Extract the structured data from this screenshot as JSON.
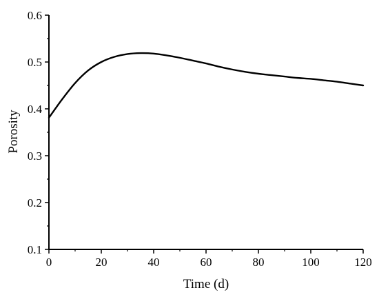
{
  "chart_data": {
    "type": "line",
    "title": "",
    "xlabel": "Time (d)",
    "ylabel": "Porosity",
    "xlim": [
      0,
      120
    ],
    "ylim": [
      0.1,
      0.6
    ],
    "x_ticks": [
      0,
      20,
      40,
      60,
      80,
      100,
      120
    ],
    "x_tick_labels": [
      "0",
      "20",
      "40",
      "60",
      "80",
      "100",
      "120"
    ],
    "y_ticks": [
      0.1,
      0.2,
      0.3,
      0.4,
      0.5,
      0.6
    ],
    "y_tick_labels": [
      "0.1",
      "0.2",
      "0.3",
      "0.4",
      "0.5",
      "0.6"
    ],
    "grid": false,
    "legend": "none",
    "series": [
      {
        "color": "#000000",
        "x": [
          0,
          5,
          10,
          15,
          20,
          25,
          30,
          35,
          40,
          45,
          50,
          55,
          60,
          65,
          70,
          75,
          80,
          85,
          90,
          95,
          100,
          105,
          110,
          115,
          120
        ],
        "y": [
          0.381,
          0.42,
          0.455,
          0.482,
          0.5,
          0.511,
          0.517,
          0.519,
          0.518,
          0.514,
          0.509,
          0.503,
          0.497,
          0.49,
          0.484,
          0.479,
          0.475,
          0.472,
          0.469,
          0.466,
          0.464,
          0.461,
          0.458,
          0.454,
          0.45
        ]
      }
    ]
  }
}
